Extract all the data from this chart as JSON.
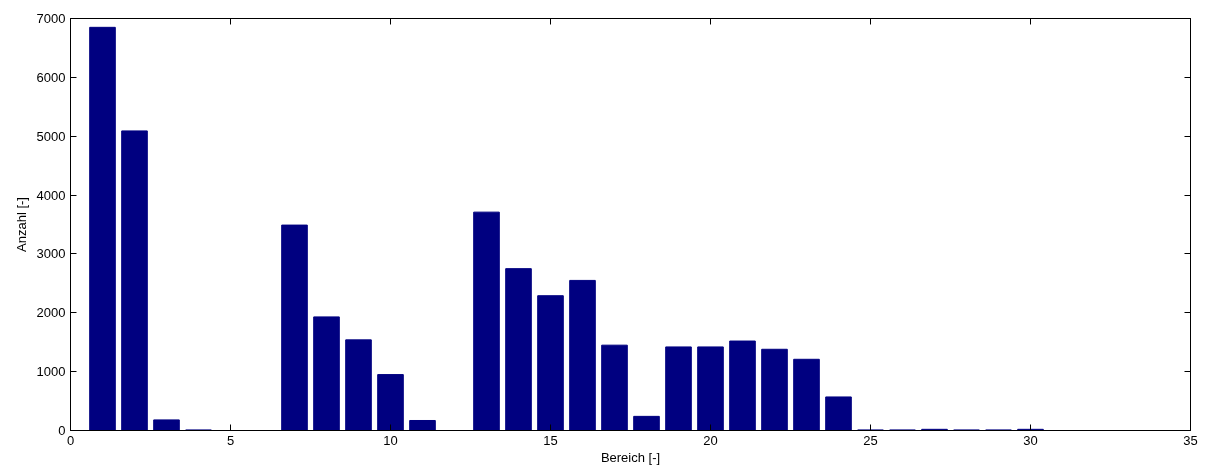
{
  "chart_data": {
    "type": "bar",
    "xlabel": "Bereich [-]",
    "ylabel": "Anzahl [-]",
    "x": [
      1,
      2,
      3,
      4,
      5,
      6,
      7,
      8,
      9,
      10,
      11,
      12,
      13,
      14,
      15,
      16,
      17,
      18,
      19,
      20,
      21,
      22,
      23,
      24,
      25,
      26,
      27,
      28,
      29,
      30
    ],
    "values": [
      6850,
      5090,
      180,
      10,
      0,
      0,
      3490,
      1930,
      1540,
      950,
      170,
      0,
      3710,
      2750,
      2290,
      2550,
      1450,
      240,
      1420,
      1420,
      1520,
      1380,
      1210,
      570,
      10,
      10,
      20,
      10,
      10,
      20
    ],
    "color": "#000080",
    "xlim": [
      0,
      35
    ],
    "xticks": [
      0,
      5,
      10,
      15,
      20,
      25,
      30,
      35
    ],
    "ylim": [
      0,
      7000
    ],
    "yticks": [
      0,
      1000,
      2000,
      3000,
      4000,
      5000,
      6000,
      7000
    ],
    "grid": false
  }
}
